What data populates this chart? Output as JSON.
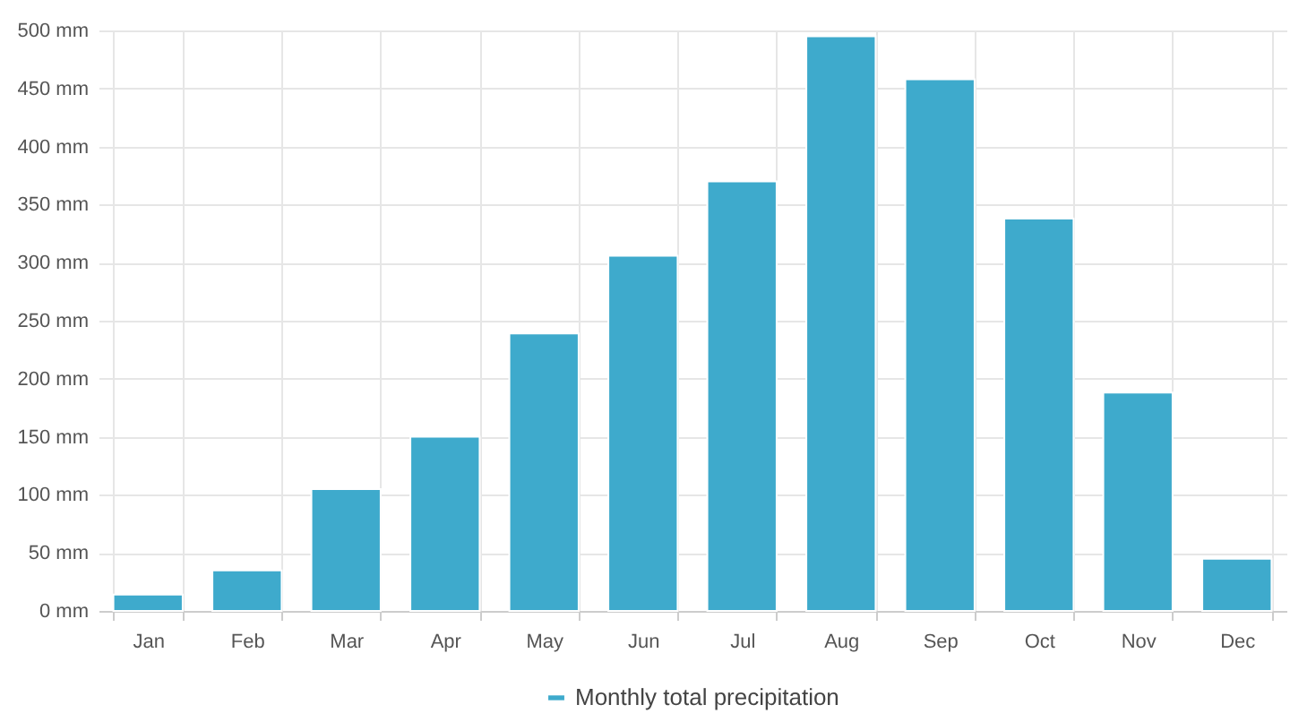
{
  "chart_data": {
    "type": "bar",
    "categories": [
      "Jan",
      "Feb",
      "Mar",
      "Apr",
      "May",
      "Jun",
      "Jul",
      "Aug",
      "Sep",
      "Oct",
      "Nov",
      "Dec"
    ],
    "series": [
      {
        "name": "Monthly total precipitation",
        "color": "#3eaacc",
        "values": [
          14,
          35,
          105,
          150,
          239,
          306,
          370,
          495,
          458,
          338,
          188,
          45
        ]
      }
    ],
    "ylim": [
      0,
      500
    ],
    "yticks": [
      {
        "value": 0,
        "label": "0 mm"
      },
      {
        "value": 50,
        "label": "50 mm"
      },
      {
        "value": 100,
        "label": "100 mm"
      },
      {
        "value": 150,
        "label": "150 mm"
      },
      {
        "value": 200,
        "label": "200 mm"
      },
      {
        "value": 250,
        "label": "250 mm"
      },
      {
        "value": 300,
        "label": "300 mm"
      },
      {
        "value": 350,
        "label": "350 mm"
      },
      {
        "value": 400,
        "label": "400 mm"
      },
      {
        "value": 450,
        "label": "450 mm"
      },
      {
        "value": 500,
        "label": "500 mm"
      }
    ],
    "grid": true,
    "legend": "bottom"
  }
}
